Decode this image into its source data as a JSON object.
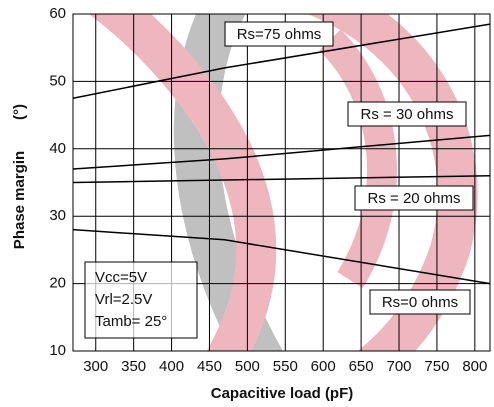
{
  "chart_data": {
    "type": "line",
    "x_label": "Capacitive load (pF)",
    "y_label": "Phase margin",
    "y_unit": "(°)",
    "xlim": [
      270,
      820
    ],
    "xticks": [
      300,
      350,
      400,
      450,
      500,
      550,
      600,
      650,
      700,
      750,
      800
    ],
    "ylim": [
      10,
      60
    ],
    "yticks": [
      10,
      20,
      30,
      40,
      50,
      60
    ],
    "grid": true,
    "series": [
      {
        "name": "Rs=75 ohms",
        "color": "#000000",
        "x": [
          270,
          470,
          820
        ],
        "values": [
          47.5,
          52,
          58.5
        ]
      },
      {
        "name": "Rs = 30 ohms",
        "color": "#000000",
        "x": [
          270,
          470,
          820
        ],
        "values": [
          37,
          38.5,
          42
        ]
      },
      {
        "name": "Rs = 20 ohms",
        "color": "#000000",
        "x": [
          270,
          820
        ],
        "values": [
          35,
          36
        ]
      },
      {
        "name": "Rs=0 ohms",
        "color": "#000000",
        "x": [
          270,
          470,
          820
        ],
        "values": [
          28,
          26.5,
          20
        ]
      }
    ],
    "conditions": [
      "Vcc=5V",
      "Vrl=2.5V",
      "Tamb=  25°"
    ]
  }
}
